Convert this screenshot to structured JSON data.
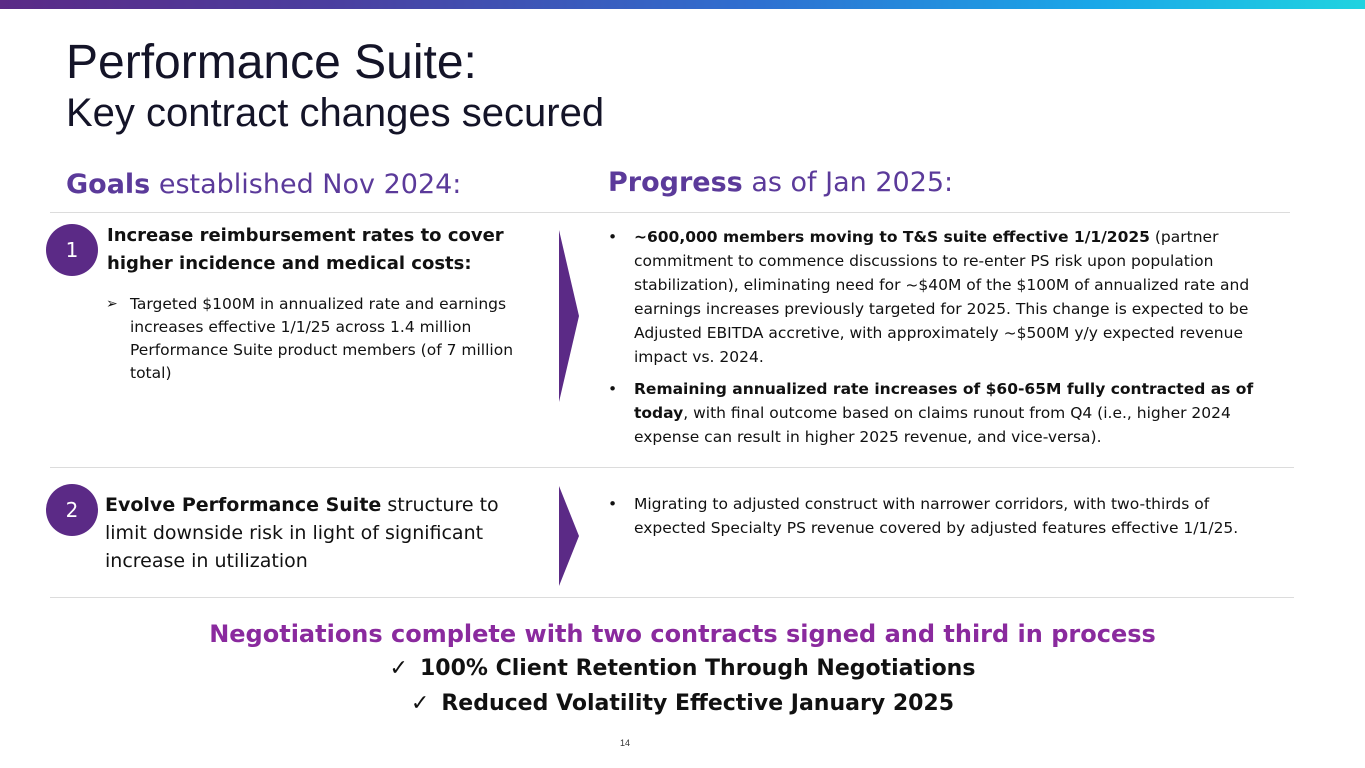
{
  "slide": {
    "title": "Performance Suite:",
    "subtitle": "Key contract changes secured",
    "page_number": "14"
  },
  "colors": {
    "purple_accent": "#5b2a86",
    "heading_purple": "#5b3a9a",
    "summary_purple": "#8a2a9e"
  },
  "goals_header": {
    "bold": "Goals",
    "rest": " established Nov 2024:"
  },
  "progress_header": {
    "bold": "Progress",
    "rest": " as of Jan 2025:"
  },
  "goals": [
    {
      "number": "1",
      "heading": "Increase reimbursement rates to cover higher incidence and medical costs:",
      "sub_bullet_icon": "arrowhead-bullet-icon",
      "sub_bullet": "Targeted $100M in annualized rate and earnings increases effective 1/1/25 across 1.4 million Performance Suite product members (of 7 million total)"
    },
    {
      "number": "2",
      "heading_bold": "Evolve Performance Suite",
      "heading_rest": " structure to limit downside risk in light of significant increase in utilization"
    }
  ],
  "progress": [
    {
      "bold": "~600,000 members moving to T&S suite effective 1/1/2025",
      "rest": " (partner commitment to commence discussions to re-enter PS risk upon population stabilization), eliminating need for ~$40M of the $100M of annualized rate and earnings increases previously targeted for 2025.  This change is expected to be Adjusted EBITDA accretive, with approximately ~$500M y/y expected revenue impact vs. 2024."
    },
    {
      "bold": "Remaining annualized rate increases of $60-65M fully contracted as of today",
      "rest": ", with final outcome based on claims runout from Q4 (i.e., higher 2024 expense can result in higher 2025 revenue, and vice-versa)."
    },
    {
      "bold": "",
      "rest": "Migrating to adjusted construct with narrower corridors, with two-thirds of expected Specialty PS revenue covered by adjusted features effective 1/1/25."
    }
  ],
  "summary": {
    "headline": "Negotiations complete with two contracts signed and third in process",
    "check_glyph": "✓",
    "check_icon": "checkmark-icon",
    "items": [
      "100% Client Retention Through Negotiations",
      "Reduced Volatility Effective January 2025"
    ]
  }
}
